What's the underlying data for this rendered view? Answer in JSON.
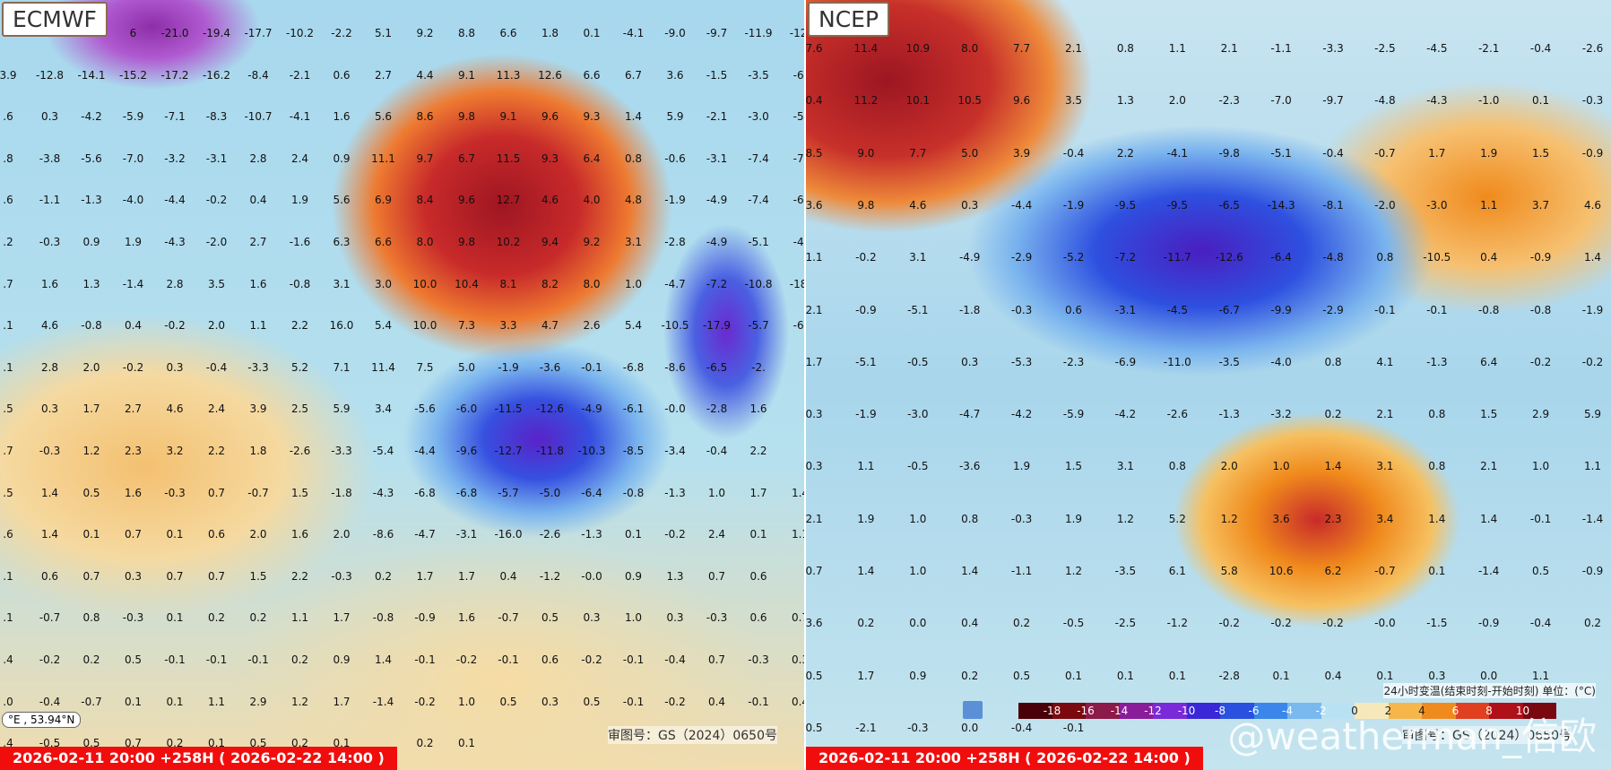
{
  "panels": [
    {
      "title": "ECMWF",
      "footer": "2026-02-11 20:00 +258H ( 2026-02-22 14:00 )",
      "coord": "°E , 53.94°N",
      "approval": "审图号：GS（2024）0650号",
      "grid_rows": [
        [
          "",
          "",
          "",
          "6",
          "-21.0",
          "-19.4",
          "-17.7",
          "-10.2",
          "-2.2",
          "5.1",
          "9.2",
          "8.8",
          "6.6",
          "1.8",
          "0.1",
          "-4.1",
          "-9.0",
          "-9.7",
          "-11.9",
          "-12."
        ],
        [
          "3.9",
          "-12.8",
          "-14.1",
          "-15.2",
          "-17.2",
          "-16.2",
          "-8.4",
          "-2.1",
          "0.6",
          "2.7",
          "4.4",
          "9.1",
          "11.3",
          "12.6",
          "6.6",
          "6.7",
          "3.6",
          "-1.5",
          "-3.5",
          "-6."
        ],
        [
          ".6",
          "0.3",
          "-4.2",
          "-5.9",
          "-7.1",
          "-8.3",
          "-10.7",
          "-4.1",
          "1.6",
          "5.6",
          "8.6",
          "9.8",
          "9.1",
          "9.6",
          "9.3",
          "1.4",
          "5.9",
          "-2.1",
          "-3.0",
          "-5."
        ],
        [
          ".8",
          "-3.8",
          "-5.6",
          "-7.0",
          "-3.2",
          "-3.1",
          "2.8",
          "2.4",
          "0.9",
          "11.1",
          "9.7",
          "6.7",
          "11.5",
          "9.3",
          "6.4",
          "0.8",
          "-0.6",
          "-3.1",
          "-7.4",
          "-7."
        ],
        [
          ".6",
          "-1.1",
          "-1.3",
          "-4.0",
          "-4.4",
          "-0.2",
          "0.4",
          "1.9",
          "5.6",
          "6.9",
          "8.4",
          "9.6",
          "12.7",
          "4.6",
          "4.0",
          "4.8",
          "-1.9",
          "-4.9",
          "-7.4",
          "-6."
        ],
        [
          ".2",
          "-0.3",
          "0.9",
          "1.9",
          "-4.3",
          "-2.0",
          "2.7",
          "-1.6",
          "6.3",
          "6.6",
          "8.0",
          "9.8",
          "10.2",
          "9.4",
          "9.2",
          "3.1",
          "-2.8",
          "-4.9",
          "-5.1",
          "-4."
        ],
        [
          ".7",
          "1.6",
          "1.3",
          "-1.4",
          "2.8",
          "3.5",
          "1.6",
          "-0.8",
          "3.1",
          "3.0",
          "10.0",
          "10.4",
          "8.1",
          "8.2",
          "8.0",
          "1.0",
          "-4.7",
          "-7.2",
          "-10.8",
          "-18."
        ],
        [
          ".1",
          "4.6",
          "-0.8",
          "0.4",
          "-0.2",
          "2.0",
          "1.1",
          "2.2",
          "16.0",
          "5.4",
          "10.0",
          "7.3",
          "3.3",
          "4.7",
          "2.6",
          "5.4",
          "-10.5",
          "-17.9",
          "-5.7",
          "-6."
        ],
        [
          ".1",
          "2.8",
          "2.0",
          "-0.2",
          "0.3",
          "-0.4",
          "-3.3",
          "5.2",
          "7.1",
          "11.4",
          "7.5",
          "5.0",
          "-1.9",
          "-3.6",
          "-0.1",
          "-6.8",
          "-8.6",
          "-6.5",
          "-2.",
          ""
        ],
        [
          ".5",
          "0.3",
          "1.7",
          "2.7",
          "4.6",
          "2.4",
          "3.9",
          "2.5",
          "5.9",
          "3.4",
          "-5.6",
          "-6.0",
          "-11.5",
          "-12.6",
          "-4.9",
          "-6.1",
          "-0.0",
          "-2.8",
          "1.6",
          ""
        ],
        [
          ".7",
          "-0.3",
          "1.2",
          "2.3",
          "3.2",
          "2.2",
          "1.8",
          "-2.6",
          "-3.3",
          "-5.4",
          "-4.4",
          "-9.6",
          "-12.7",
          "-11.8",
          "-10.3",
          "-8.5",
          "-3.4",
          "-0.4",
          "2.2",
          ""
        ],
        [
          ".5",
          "1.4",
          "0.5",
          "1.6",
          "-0.3",
          "0.7",
          "-0.7",
          "1.5",
          "-1.8",
          "-4.3",
          "-6.8",
          "-6.8",
          "-5.7",
          "-5.0",
          "-6.4",
          "-0.8",
          "-1.3",
          "1.0",
          "1.7",
          "1.4"
        ],
        [
          ".6",
          "1.4",
          "0.1",
          "0.7",
          "0.1",
          "0.6",
          "2.0",
          "1.6",
          "2.0",
          "-8.6",
          "-4.7",
          "-3.1",
          "-16.0",
          "-2.6",
          "-1.3",
          "0.1",
          "-0.2",
          "2.4",
          "0.1",
          "1.1"
        ],
        [
          ".1",
          "0.6",
          "0.7",
          "0.3",
          "0.7",
          "0.7",
          "1.5",
          "2.2",
          "-0.3",
          "0.2",
          "1.7",
          "1.7",
          "0.4",
          "-1.2",
          "-0.0",
          "0.9",
          "1.3",
          "0.7",
          "0.6",
          ""
        ],
        [
          ".1",
          "-0.7",
          "0.8",
          "-0.3",
          "0.1",
          "0.2",
          "0.2",
          "1.1",
          "1.7",
          "-0.8",
          "-0.9",
          "1.6",
          "-0.7",
          "0.5",
          "0.3",
          "1.0",
          "0.3",
          "-0.3",
          "0.6",
          "0.7"
        ],
        [
          ".4",
          "-0.2",
          "0.2",
          "0.5",
          "-0.1",
          "-0.1",
          "-0.1",
          "0.2",
          "0.9",
          "1.4",
          "-0.1",
          "-0.2",
          "-0.1",
          "0.6",
          "-0.2",
          "-0.1",
          "-0.4",
          "0.7",
          "-0.3",
          "0.3"
        ],
        [
          ".0",
          "-0.4",
          "-0.7",
          "0.1",
          "0.1",
          "1.1",
          "2.9",
          "1.2",
          "1.7",
          "-1.4",
          "-0.2",
          "1.0",
          "0.5",
          "0.3",
          "0.5",
          "-0.1",
          "-0.2",
          "0.4",
          "-0.1",
          "0.4"
        ],
        [
          ".4",
          "-0.5",
          "0.5",
          "0.7",
          "0.2",
          "0.1",
          "0.5",
          "0.2",
          "0.1",
          "",
          "0.2",
          "0.1",
          "",
          "",
          "",
          "",
          "",
          "",
          "",
          ""
        ]
      ]
    },
    {
      "title": "NCEP",
      "footer": "2026-02-11 20:00 +258H ( 2026-02-22 14:00 )",
      "approval": "审图号：GS（2024）0650号",
      "grid_rows": [
        [
          "7.6",
          "11.4",
          "10.9",
          "8.0",
          "7.7",
          "2.1",
          "0.8",
          "1.1",
          "2.1",
          "-1.1",
          "-3.3",
          "-2.5",
          "-4.5",
          "-2.1",
          "-0.4",
          "-2.6"
        ],
        [
          "0.4",
          "11.2",
          "10.1",
          "10.5",
          "9.6",
          "3.5",
          "1.3",
          "2.0",
          "-2.3",
          "-7.0",
          "-9.7",
          "-4.8",
          "-4.3",
          "-1.0",
          "0.1",
          "-0.3"
        ],
        [
          "8.5",
          "9.0",
          "7.7",
          "5.0",
          "3.9",
          "-0.4",
          "2.2",
          "-4.1",
          "-9.8",
          "-5.1",
          "-0.4",
          "-0.7",
          "1.7",
          "1.9",
          "1.5",
          "-0.9"
        ],
        [
          "3.6",
          "9.8",
          "4.6",
          "0.3",
          "-4.4",
          "-1.9",
          "-9.5",
          "-9.5",
          "-6.5",
          "-14.3",
          "-8.1",
          "-2.0",
          "-3.0",
          "1.1",
          "3.7",
          "4.6"
        ],
        [
          "1.1",
          "-0.2",
          "3.1",
          "-4.9",
          "-2.9",
          "-5.2",
          "-7.2",
          "-11.7",
          "-12.6",
          "-6.4",
          "-4.8",
          "0.8",
          "-10.5",
          "0.4",
          "-0.9",
          "1.4"
        ],
        [
          "2.1",
          "-0.9",
          "-5.1",
          "-1.8",
          "-0.3",
          "0.6",
          "-3.1",
          "-4.5",
          "-6.7",
          "-9.9",
          "-2.9",
          "-0.1",
          "-0.1",
          "-0.8",
          "-0.8",
          "-1.9"
        ],
        [
          "1.7",
          "-5.1",
          "-0.5",
          "0.3",
          "-5.3",
          "-2.3",
          "-6.9",
          "-11.0",
          "-3.5",
          "-4.0",
          "0.8",
          "4.1",
          "-1.3",
          "6.4",
          "-0.2",
          "-0.2"
        ],
        [
          "0.3",
          "-1.9",
          "-3.0",
          "-4.7",
          "-4.2",
          "-5.9",
          "-4.2",
          "-2.6",
          "-1.3",
          "-3.2",
          "0.2",
          "2.1",
          "0.8",
          "1.5",
          "2.9",
          "5.9"
        ],
        [
          "0.3",
          "1.1",
          "-0.5",
          "-3.6",
          "1.9",
          "1.5",
          "3.1",
          "0.8",
          "2.0",
          "1.0",
          "1.4",
          "3.1",
          "0.8",
          "2.1",
          "1.0",
          "1.1"
        ],
        [
          "2.1",
          "1.9",
          "1.0",
          "0.8",
          "-0.3",
          "1.9",
          "1.2",
          "5.2",
          "1.2",
          "3.6",
          "2.3",
          "3.4",
          "1.4",
          "1.4",
          "-0.1",
          "-1.4"
        ],
        [
          "0.7",
          "1.4",
          "1.0",
          "1.4",
          "-1.1",
          "1.2",
          "-3.5",
          "6.1",
          "5.8",
          "10.6",
          "6.2",
          "-0.7",
          "0.1",
          "-1.4",
          "0.5",
          "-0.9"
        ],
        [
          "3.6",
          "0.2",
          "0.0",
          "0.4",
          "0.2",
          "-0.5",
          "-2.5",
          "-1.2",
          "-0.2",
          "-0.2",
          "-0.2",
          "-0.0",
          "-1.5",
          "-0.9",
          "-0.4",
          "0.2"
        ],
        [
          "0.5",
          "1.7",
          "0.9",
          "0.2",
          "0.5",
          "0.1",
          "0.1",
          "0.1",
          "-2.8",
          "0.1",
          "0.4",
          "0.1",
          "0.3",
          "0.0",
          "1.1",
          ""
        ],
        [
          "0.5",
          "-2.1",
          "-0.3",
          "0.0",
          "-0.4",
          "-0.1",
          "",
          "",
          "",
          "",
          "",
          "",
          "",
          "",
          "",
          ""
        ]
      ],
      "legend": {
        "title": "24小时变温(结束时刻-开始时刻) 单位：(°C)",
        "ticks": [
          "-18",
          "-16",
          "-14",
          "-12",
          "-10",
          "-8",
          "-6",
          "-4",
          "-2",
          "0",
          "2",
          "4",
          "6",
          "8",
          "10"
        ],
        "colors": [
          "#4a0008",
          "#7a0a10",
          "#8c1a4a",
          "#8a1c9a",
          "#7a2ad8",
          "#3a28d8",
          "#2a50e0",
          "#3a86ea",
          "#7ab8f0",
          "#b8e2f4",
          "#f6e8b8",
          "#f7b64a",
          "#f08a1c",
          "#e04020",
          "#b01018",
          "#7a0810"
        ]
      }
    }
  ],
  "watermark": "@weatherman_信欧"
}
